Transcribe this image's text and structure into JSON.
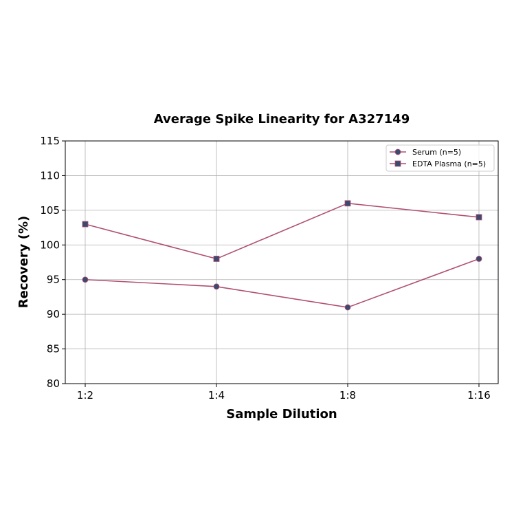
{
  "chart_data": {
    "type": "line",
    "title": "Average Spike Linearity for A327149",
    "xlabel": "Sample Dilution",
    "ylabel": "Recovery (%)",
    "categories": [
      "1:2",
      "1:4",
      "1:8",
      "1:16"
    ],
    "ylim": [
      80,
      115
    ],
    "yticks": [
      80,
      85,
      90,
      95,
      100,
      105,
      110,
      115
    ],
    "grid": true,
    "legend_position": "top-right",
    "series": [
      {
        "name": "Serum (n=5)",
        "marker": "circle",
        "values": [
          95,
          94,
          91,
          98
        ]
      },
      {
        "name": "EDTA Plasma (n=5)",
        "marker": "square",
        "values": [
          103,
          98,
          106,
          104
        ]
      }
    ],
    "colors": {
      "line": "#b04f72",
      "marker": "#3b4a6e",
      "grid": "#b0b0b0"
    }
  }
}
